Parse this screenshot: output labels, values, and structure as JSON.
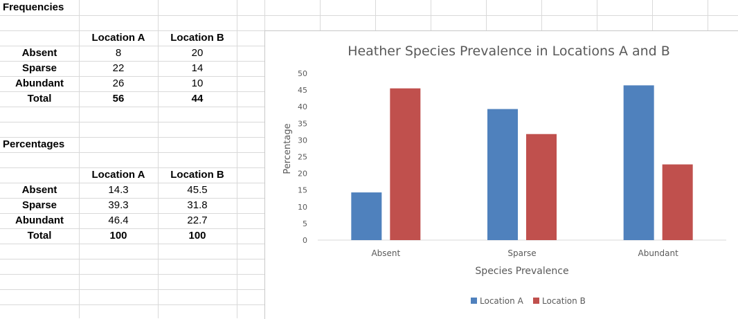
{
  "sheet": {
    "freq_title": "Frequencies",
    "pct_title": "Percentages",
    "col_a": "Location A",
    "col_b": "Location B",
    "freq_rows": [
      {
        "label": "Absent",
        "a": "8",
        "b": "20"
      },
      {
        "label": "Sparse",
        "a": "22",
        "b": "14"
      },
      {
        "label": "Abundant",
        "a": "26",
        "b": "10"
      },
      {
        "label": "Total",
        "a": "56",
        "b": "44"
      }
    ],
    "pct_rows": [
      {
        "label": "Absent",
        "a": "14.3",
        "b": "45.5"
      },
      {
        "label": "Sparse",
        "a": "39.3",
        "b": "31.8"
      },
      {
        "label": "Abundant",
        "a": "46.4",
        "b": "22.7"
      },
      {
        "label": "Total",
        "a": "100",
        "b": "100"
      }
    ]
  },
  "chart_data": {
    "type": "bar",
    "title": "Heather Species Prevalence in Locations A and B",
    "xlabel": "Species Prevalence",
    "ylabel": "Percentage",
    "categories": [
      "Absent",
      "Sparse",
      "Abundant"
    ],
    "series": [
      {
        "name": "Location A",
        "color": "#4f81bd",
        "values": [
          14.3,
          39.3,
          46.4
        ]
      },
      {
        "name": "Location B",
        "color": "#c0504d",
        "values": [
          45.5,
          31.8,
          22.7
        ]
      }
    ],
    "ylim": [
      0,
      50
    ],
    "yticks": [
      0,
      5,
      10,
      15,
      20,
      25,
      30,
      35,
      40,
      45,
      50
    ],
    "grid": false,
    "legend": "bottom"
  }
}
